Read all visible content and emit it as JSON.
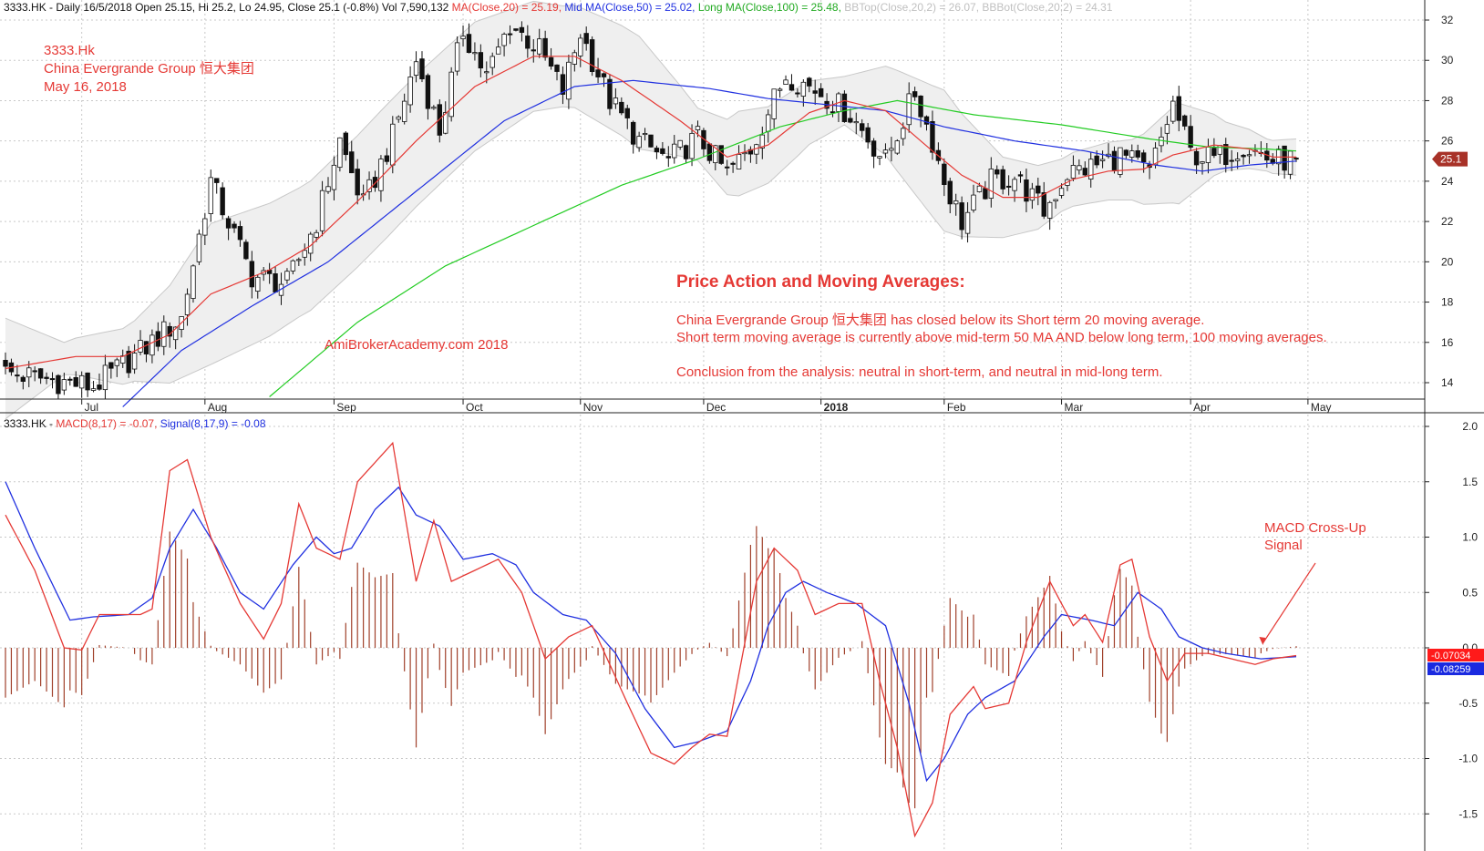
{
  "header": {
    "ticker_line": "3333.HK - Daily 16/5/2018 Open 25.15, Hi 25.2, Lo 24.95, Close 25.1 (-0.8%) Vol 7,590,132",
    "ma20": "MA(Close,20) = 25.19,",
    "ma50": "Mid MA(Close,50) = 25.02,",
    "ma100": "Long MA(Close,100) = 25.48,",
    "bbtop": "BBTop(Close,20,2) = 26.07,",
    "bbbot": "BBBot(Close,20,2) = 24.31",
    "macd_prefix": "3333.HK -",
    "macd_label": "MACD(8,17) = -0.07,",
    "signal_label": "Signal(8,17,9) = -0.08"
  },
  "annotations": {
    "title_lines": [
      "3333.Hk",
      "China Evergrande Group  恒大集团",
      "May 16, 2018"
    ],
    "watermark": "AmiBrokerAcademy.com  2018",
    "analysis_heading": "Price Action and Moving Averages:",
    "analysis_lines": [
      "China Evergrande Group  恒大集团 has closed below its Short term 20 moving average.",
      "Short term moving average is currently above mid-term 50 MA AND below long term, 100 moving averages.",
      "",
      "Conclusion from the analysis: neutral in short-term, and neutral in mid-long term."
    ],
    "macd_note": [
      "MACD Cross-Up",
      "Signal"
    ]
  },
  "colors": {
    "ma20": "#e53935",
    "ma50": "#2030e0",
    "ma100": "#22cc22",
    "band_fill": "#efefef",
    "band_line": "#c8c8c8",
    "candle": "#111111",
    "macd": "#e53935",
    "signal": "#2030e0",
    "hist": "#a0402a",
    "grid": "#c8c8c8",
    "bbtext": "#c0c0c0",
    "annotation": "#e53935"
  },
  "chart_data": [
    {
      "type": "candlestick",
      "name": "price",
      "x_labels": [
        "Jul",
        "Aug",
        "Sep",
        "Oct",
        "Nov",
        "Dec",
        "2018",
        "Feb",
        "Mar",
        "Apr",
        "May"
      ],
      "y_ticks": [
        14,
        16,
        18,
        20,
        22,
        24,
        26,
        28,
        30,
        32
      ],
      "ylim": [
        13,
        33
      ],
      "last_price_label": "25.1",
      "close_anchors": [
        [
          0,
          14.5
        ],
        [
          15,
          13.8
        ],
        [
          22,
          15.3
        ],
        [
          30,
          17.2
        ],
        [
          35,
          24.0
        ],
        [
          42,
          19.3
        ],
        [
          48,
          18.9
        ],
        [
          53,
          22.0
        ],
        [
          57,
          26.0
        ],
        [
          61,
          22.8
        ],
        [
          66,
          26.2
        ],
        [
          70,
          30.0
        ],
        [
          74,
          26.5
        ],
        [
          78,
          31.5
        ],
        [
          82,
          29.2
        ],
        [
          86,
          31.8
        ],
        [
          91,
          30.5
        ],
        [
          95,
          28.5
        ],
        [
          98,
          31.4
        ],
        [
          103,
          28.0
        ],
        [
          108,
          26.0
        ],
        [
          113,
          25.0
        ],
        [
          118,
          26.2
        ],
        [
          123,
          24.4
        ],
        [
          127,
          25.6
        ],
        [
          133,
          29.3
        ],
        [
          139,
          28.4
        ],
        [
          144,
          27.3
        ],
        [
          150,
          25.0
        ],
        [
          155,
          28.4
        ],
        [
          158,
          26.0
        ],
        [
          160,
          24.0
        ],
        [
          163,
          22.0
        ],
        [
          168,
          24.0
        ],
        [
          172,
          24.2
        ],
        [
          177,
          22.5
        ],
        [
          181,
          24.4
        ],
        [
          186,
          24.8
        ],
        [
          190,
          25.3
        ],
        [
          195,
          24.4
        ],
        [
          199,
          27.8
        ],
        [
          202,
          25.4
        ],
        [
          206,
          25.1
        ],
        [
          211,
          25.8
        ],
        [
          216,
          25.0
        ],
        [
          220,
          25.1
        ]
      ],
      "ma20_anchors": [
        [
          0,
          14.7
        ],
        [
          12,
          15.3
        ],
        [
          20,
          15.3
        ],
        [
          28,
          16.4
        ],
        [
          35,
          18.4
        ],
        [
          45,
          19.6
        ],
        [
          52,
          20.8
        ],
        [
          60,
          23.0
        ],
        [
          70,
          26.0
        ],
        [
          80,
          28.7
        ],
        [
          90,
          30.2
        ],
        [
          97,
          30.2
        ],
        [
          105,
          29.0
        ],
        [
          115,
          27.0
        ],
        [
          123,
          25.2
        ],
        [
          130,
          25.8
        ],
        [
          137,
          27.4
        ],
        [
          143,
          28.0
        ],
        [
          150,
          27.5
        ],
        [
          158,
          25.5
        ],
        [
          163,
          24.3
        ],
        [
          170,
          23.2
        ],
        [
          176,
          23.2
        ],
        [
          182,
          24.1
        ],
        [
          188,
          24.5
        ],
        [
          194,
          24.6
        ],
        [
          199,
          25.3
        ],
        [
          206,
          25.8
        ],
        [
          212,
          25.6
        ],
        [
          216,
          25.2
        ],
        [
          220,
          25.2
        ]
      ],
      "ma50_anchors": [
        [
          20,
          12.8
        ],
        [
          30,
          15.6
        ],
        [
          42,
          17.8
        ],
        [
          55,
          20.0
        ],
        [
          70,
          23.5
        ],
        [
          85,
          27.0
        ],
        [
          97,
          28.7
        ],
        [
          107,
          29.0
        ],
        [
          120,
          28.6
        ],
        [
          130,
          28.1
        ],
        [
          140,
          27.8
        ],
        [
          150,
          27.5
        ],
        [
          160,
          26.7
        ],
        [
          172,
          26.0
        ],
        [
          184,
          25.5
        ],
        [
          196,
          24.8
        ],
        [
          204,
          24.5
        ],
        [
          212,
          24.8
        ],
        [
          220,
          25.0
        ]
      ],
      "ma100_anchors": [
        [
          45,
          13.3
        ],
        [
          60,
          17.0
        ],
        [
          75,
          19.8
        ],
        [
          90,
          21.8
        ],
        [
          105,
          23.8
        ],
        [
          118,
          25.1
        ],
        [
          132,
          26.7
        ],
        [
          143,
          27.5
        ],
        [
          152,
          28.0
        ],
        [
          165,
          27.3
        ],
        [
          180,
          26.8
        ],
        [
          195,
          26.1
        ],
        [
          205,
          25.7
        ],
        [
          215,
          25.6
        ],
        [
          220,
          25.5
        ]
      ],
      "bb_half_width_anchors": [
        [
          0,
          2.5
        ],
        [
          10,
          0.8
        ],
        [
          22,
          1.5
        ],
        [
          35,
          3.5
        ],
        [
          50,
          3.2
        ],
        [
          65,
          3.3
        ],
        [
          80,
          3.2
        ],
        [
          95,
          2.5
        ],
        [
          108,
          2.8
        ],
        [
          118,
          1.3
        ],
        [
          125,
          2.1
        ],
        [
          135,
          1.7
        ],
        [
          143,
          1.2
        ],
        [
          152,
          2.5
        ],
        [
          160,
          3.5
        ],
        [
          170,
          2.0
        ],
        [
          180,
          1.3
        ],
        [
          192,
          1.5
        ],
        [
          200,
          2.5
        ],
        [
          208,
          1.2
        ],
        [
          215,
          0.8
        ],
        [
          220,
          0.9
        ]
      ]
    },
    {
      "type": "line",
      "name": "macd",
      "y_ticks": [
        -1.5,
        -1.0,
        -0.5,
        0.0,
        0.5,
        1.0,
        1.5,
        2.0
      ],
      "y_tick_labels": [
        "-1.5",
        "-1.0",
        "-0.5",
        "0.0",
        "0.5",
        "1.0",
        "1.5",
        "2.0"
      ],
      "ylim": [
        -1.75,
        2.05
      ],
      "last_macd_label": "-0.07034",
      "last_signal_label": "-0.08259",
      "macd_anchors": [
        [
          0,
          1.2
        ],
        [
          5,
          0.7
        ],
        [
          10,
          0.0
        ],
        [
          13,
          -0.02
        ],
        [
          16,
          0.3
        ],
        [
          23,
          0.3
        ],
        [
          25,
          0.35
        ],
        [
          28,
          1.6
        ],
        [
          31,
          1.7
        ],
        [
          35,
          1.0
        ],
        [
          40,
          0.4
        ],
        [
          44,
          0.08
        ],
        [
          47,
          0.4
        ],
        [
          50,
          1.3
        ],
        [
          53,
          0.9
        ],
        [
          57,
          0.8
        ],
        [
          60,
          1.5
        ],
        [
          66,
          1.85
        ],
        [
          70,
          0.6
        ],
        [
          73,
          1.15
        ],
        [
          76,
          0.6
        ],
        [
          80,
          0.7
        ],
        [
          84,
          0.8
        ],
        [
          88,
          0.5
        ],
        [
          92,
          -0.1
        ],
        [
          96,
          0.1
        ],
        [
          100,
          0.2
        ],
        [
          106,
          -0.5
        ],
        [
          110,
          -0.95
        ],
        [
          114,
          -1.05
        ],
        [
          117,
          -0.9
        ],
        [
          120,
          -0.78
        ],
        [
          123,
          -0.8
        ],
        [
          128,
          0.6
        ],
        [
          131,
          0.9
        ],
        [
          135,
          0.7
        ],
        [
          138,
          0.3
        ],
        [
          142,
          0.4
        ],
        [
          146,
          0.4
        ],
        [
          149,
          -0.3
        ],
        [
          152,
          -0.9
        ],
        [
          155,
          -1.7
        ],
        [
          158,
          -1.4
        ],
        [
          161,
          -0.6
        ],
        [
          165,
          -0.35
        ],
        [
          167,
          -0.55
        ],
        [
          171,
          -0.5
        ],
        [
          174,
          0.05
        ],
        [
          178,
          0.6
        ],
        [
          182,
          0.2
        ],
        [
          184,
          0.3
        ],
        [
          187,
          0.05
        ],
        [
          190,
          0.75
        ],
        [
          192,
          0.8
        ],
        [
          195,
          0.1
        ],
        [
          198,
          -0.3
        ],
        [
          201,
          -0.05
        ],
        [
          205,
          -0.05
        ],
        [
          209,
          -0.1
        ],
        [
          213,
          -0.15
        ],
        [
          216,
          -0.1
        ],
        [
          220,
          -0.07
        ]
      ],
      "signal_anchors": [
        [
          0,
          1.5
        ],
        [
          5,
          0.9
        ],
        [
          11,
          0.25
        ],
        [
          15,
          0.28
        ],
        [
          21,
          0.3
        ],
        [
          25,
          0.45
        ],
        [
          28,
          0.9
        ],
        [
          32,
          1.25
        ],
        [
          36,
          0.9
        ],
        [
          40,
          0.5
        ],
        [
          44,
          0.35
        ],
        [
          49,
          0.75
        ],
        [
          53,
          1.0
        ],
        [
          56,
          0.85
        ],
        [
          59,
          0.9
        ],
        [
          63,
          1.25
        ],
        [
          67,
          1.45
        ],
        [
          70,
          1.2
        ],
        [
          74,
          1.1
        ],
        [
          78,
          0.8
        ],
        [
          83,
          0.85
        ],
        [
          87,
          0.75
        ],
        [
          90,
          0.5
        ],
        [
          95,
          0.3
        ],
        [
          99,
          0.25
        ],
        [
          104,
          -0.05
        ],
        [
          109,
          -0.55
        ],
        [
          114,
          -0.9
        ],
        [
          118,
          -0.85
        ],
        [
          123,
          -0.75
        ],
        [
          127,
          -0.3
        ],
        [
          130,
          0.2
        ],
        [
          133,
          0.5
        ],
        [
          136,
          0.6
        ],
        [
          140,
          0.5
        ],
        [
          145,
          0.4
        ],
        [
          150,
          0.2
        ],
        [
          154,
          -0.5
        ],
        [
          157,
          -1.2
        ],
        [
          160,
          -1.0
        ],
        [
          164,
          -0.6
        ],
        [
          167,
          -0.45
        ],
        [
          172,
          -0.3
        ],
        [
          177,
          0.1
        ],
        [
          180,
          0.3
        ],
        [
          185,
          0.25
        ],
        [
          189,
          0.2
        ],
        [
          193,
          0.5
        ],
        [
          197,
          0.35
        ],
        [
          200,
          0.1
        ],
        [
          204,
          0.0
        ],
        [
          208,
          -0.05
        ],
        [
          214,
          -0.1
        ],
        [
          220,
          -0.08
        ]
      ]
    }
  ]
}
